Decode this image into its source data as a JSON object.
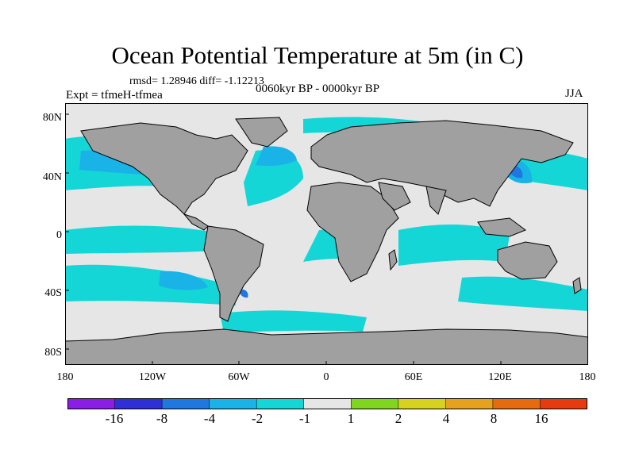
{
  "title": "Ocean Potential Temperature at 5m (in C)",
  "stats": "rmsd= 1.28946 diff= -1.12213",
  "expt": "Expt = tfmeH-tfmea",
  "period": "0060kyr BP - 0000kyr BP",
  "season": "JJA",
  "y_labels": [
    "80N",
    "40N",
    "0",
    "40S",
    "80S"
  ],
  "x_labels": [
    "180",
    "120W",
    "60W",
    "0",
    "60E",
    "120E",
    "180"
  ],
  "colorbar": {
    "colors": [
      "#8a1ee6",
      "#2f2fd8",
      "#1f78e0",
      "#19b3e8",
      "#14d6d6",
      "#e6e6e6",
      "#80d61e",
      "#d6d21e",
      "#e6a21e",
      "#e66b0f",
      "#e63a0f"
    ],
    "labels": [
      "-16",
      "-8",
      "-4",
      "-2",
      "-1",
      "1",
      "2",
      "4",
      "8",
      "16"
    ]
  },
  "palette": {
    "land": "#a0a0a0",
    "neutral": "#e6e6e6",
    "cool1": "#14d6d6",
    "cool2": "#19b3e8",
    "cool3": "#1f78e0"
  }
}
